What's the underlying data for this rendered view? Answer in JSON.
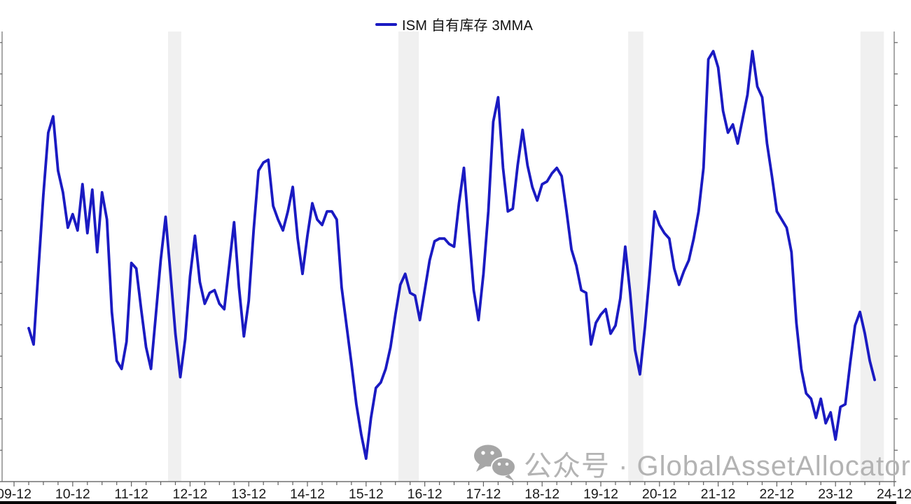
{
  "legend": {
    "label": "ISM 自有库存 3MMA"
  },
  "watermark": {
    "text": "公众号 · GlobalAssetAllocator",
    "icon": "wechat-icon"
  },
  "colors": {
    "line": "#1a1ac2",
    "band": "#f0f0f0",
    "axis": "#707070",
    "tick": "#606060",
    "label": "#1a1a1a",
    "watermark": "#b3b3b3",
    "bottom_bar": "#000000",
    "background": "#ffffff"
  },
  "chart_data": {
    "type": "line",
    "title": "ISM 自有库存 3MMA",
    "legend_position": "top-center",
    "grid": false,
    "series": [
      {
        "name": "ISM 自有库存 3MMA",
        "color": "#1a1ac2",
        "start_month": "2010-03",
        "freq": "monthly",
        "values": [
          46.8,
          46.2,
          49.0,
          51.7,
          54.0,
          54.6,
          52.6,
          51.8,
          50.5,
          51.0,
          50.4,
          52.1,
          50.3,
          51.9,
          49.6,
          51.8,
          50.8,
          47.4,
          45.6,
          45.3,
          46.3,
          49.2,
          49.0,
          47.5,
          46.1,
          45.3,
          47.3,
          49.3,
          50.9,
          48.8,
          46.6,
          45.0,
          46.4,
          48.7,
          50.2,
          48.5,
          47.7,
          48.1,
          48.2,
          47.7,
          47.5,
          49.1,
          50.7,
          48.3,
          46.5,
          47.8,
          50.4,
          52.6,
          52.9,
          53.0,
          51.3,
          50.8,
          50.4,
          51.1,
          52.0,
          50.1,
          48.8,
          50.2,
          51.4,
          50.8,
          50.6,
          51.1,
          51.1,
          50.8,
          48.3,
          46.9,
          45.5,
          44.0,
          42.9,
          42.0,
          43.5,
          44.6,
          44.8,
          45.3,
          46.1,
          47.3,
          48.4,
          48.8,
          48.1,
          48.0,
          47.1,
          48.2,
          49.3,
          50.0,
          50.1,
          50.1,
          49.9,
          49.8,
          51.4,
          52.7,
          50.4,
          48.2,
          47.1,
          48.8,
          51.1,
          54.4,
          55.3,
          52.7,
          51.1,
          51.2,
          52.8,
          54.1,
          52.8,
          52.0,
          51.5,
          52.1,
          52.2,
          52.5,
          52.7,
          52.4,
          51.1,
          49.7,
          49.1,
          48.2,
          48.1,
          46.2,
          47.0,
          47.3,
          47.5,
          46.6,
          46.9,
          47.9,
          49.8,
          48.1,
          46.0,
          45.1,
          46.8,
          48.8,
          51.1,
          50.6,
          50.3,
          50.1,
          49.0,
          48.4,
          48.9,
          49.3,
          50.1,
          51.1,
          52.7,
          56.7,
          57.0,
          56.4,
          54.8,
          54.0,
          54.3,
          53.6,
          54.5,
          55.4,
          57.0,
          55.7,
          55.3,
          53.6,
          52.4,
          51.1,
          50.8,
          50.5,
          49.6,
          47.0,
          45.3,
          44.4,
          44.2,
          43.5,
          44.2,
          43.3,
          43.7,
          42.7,
          43.9,
          44.0,
          45.5,
          46.9,
          47.4,
          46.6,
          45.6,
          44.9
        ]
      }
    ],
    "x_axis": {
      "tick_labels": [
        "09-12",
        "10-12",
        "11-12",
        "12-12",
        "13-12",
        "14-12",
        "15-12",
        "16-12",
        "17-12",
        "18-12",
        "19-12",
        "20-12",
        "21-12",
        "22-12",
        "23-12",
        "24-12"
      ],
      "tick_month_offsets": [
        -3,
        9,
        21,
        33,
        45,
        57,
        69,
        81,
        93,
        105,
        117,
        129,
        141,
        153,
        165,
        177
      ],
      "minor_tick_every_months": 3
    },
    "y_axis": {
      "ylim": [
        41.1,
        57.7
      ],
      "ticks_labeled": false,
      "tick_count": 14
    },
    "shaded_bands": [
      {
        "from_offset": 28.5,
        "to_offset": 31.2
      },
      {
        "from_offset": 75.6,
        "to_offset": 79.8
      },
      {
        "from_offset": 122.6,
        "to_offset": 125.7
      },
      {
        "from_offset": 170.1,
        "to_offset": 174.9
      }
    ]
  }
}
